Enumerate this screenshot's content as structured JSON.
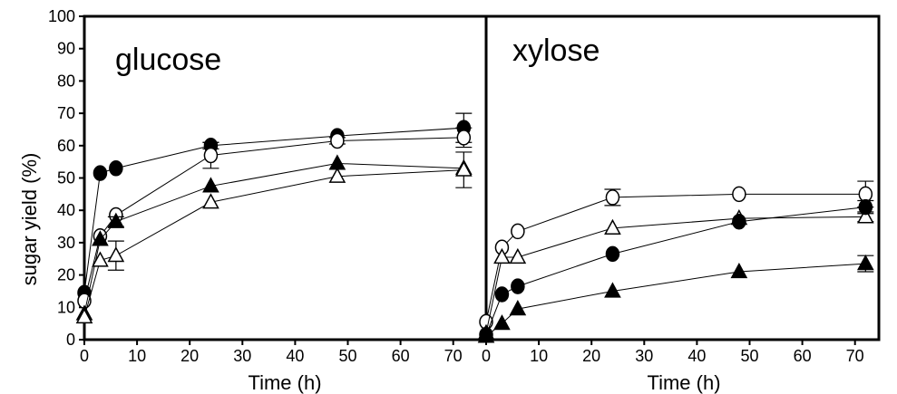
{
  "chart_data": [
    {
      "type": "scatter",
      "panel_label": "glucose",
      "xlabel": "Time (h)",
      "ylabel": "sugar yield (%)",
      "xlim": [
        0,
        78
      ],
      "ylim": [
        0,
        100
      ],
      "xticks": [
        0,
        10,
        20,
        30,
        40,
        50,
        60,
        70
      ],
      "yticks": [
        0,
        10,
        20,
        30,
        40,
        50,
        60,
        70,
        80,
        90,
        100
      ],
      "grid": false,
      "lines": true,
      "series": [
        {
          "marker": "circle-filled",
          "x": [
            0,
            3,
            6,
            24,
            48,
            72
          ],
          "y": [
            14.5,
            51.5,
            53,
            60,
            63,
            65.5
          ],
          "err": [
            0,
            0,
            0,
            1,
            0,
            4.5
          ]
        },
        {
          "marker": "circle-open",
          "x": [
            0,
            3,
            6,
            24,
            48,
            72
          ],
          "y": [
            12,
            32,
            38.5,
            57,
            61.5,
            62.5
          ],
          "err": [
            0,
            0,
            0,
            4,
            1,
            3
          ]
        },
        {
          "marker": "triangle-filled",
          "x": [
            0,
            3,
            6,
            24,
            48,
            72
          ],
          "y": [
            8,
            31,
            36.5,
            47.5,
            54.5,
            53
          ],
          "err": [
            0,
            0,
            1.5,
            0,
            0,
            0
          ]
        },
        {
          "marker": "triangle-open",
          "x": [
            0,
            3,
            6,
            24,
            48,
            72
          ],
          "y": [
            7,
            24.5,
            26,
            42.5,
            50.5,
            52.5
          ],
          "err": [
            0,
            0,
            4.5,
            0,
            0,
            5.5
          ]
        }
      ]
    },
    {
      "type": "scatter",
      "panel_label": "xylose",
      "xlabel": "Time (h)",
      "ylabel": "",
      "xlim": [
        0,
        78
      ],
      "ylim": [
        0,
        100
      ],
      "xticks": [
        0,
        10,
        20,
        30,
        40,
        50,
        60,
        70,
        80
      ],
      "grid": false,
      "lines": true,
      "series": [
        {
          "marker": "circle-open",
          "x": [
            0,
            3,
            6,
            24,
            48,
            72
          ],
          "y": [
            5.5,
            28.5,
            33.5,
            44,
            45,
            45
          ],
          "err": [
            0,
            0,
            0,
            2.5,
            0,
            4
          ]
        },
        {
          "marker": "triangle-open",
          "x": [
            0,
            3,
            6,
            24,
            48,
            72
          ],
          "y": [
            2,
            25.5,
            25.5,
            34.5,
            37.5,
            38
          ],
          "err": [
            0,
            0,
            0,
            0,
            0,
            1.5
          ]
        },
        {
          "marker": "circle-filled",
          "x": [
            0,
            3,
            6,
            24,
            48,
            72
          ],
          "y": [
            1.5,
            14,
            16.5,
            26.5,
            36.5,
            41
          ],
          "err": [
            0,
            0,
            0,
            0,
            0,
            2
          ]
        },
        {
          "marker": "triangle-filled",
          "x": [
            0,
            3,
            6,
            24,
            48,
            72
          ],
          "y": [
            1,
            5,
            9.5,
            15,
            21,
            23.5
          ],
          "err": [
            0,
            0,
            0,
            0,
            0,
            2.5
          ]
        }
      ]
    }
  ]
}
